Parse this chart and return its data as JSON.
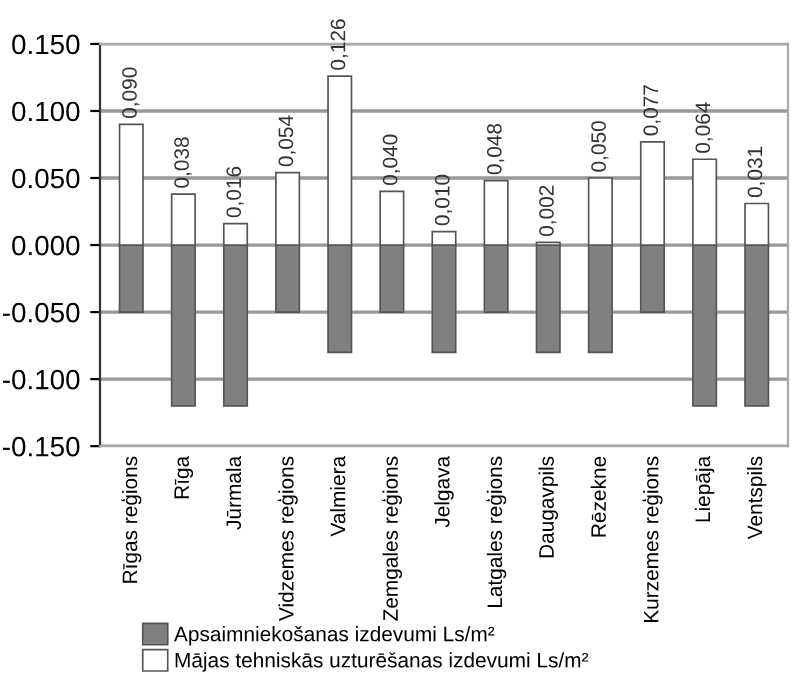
{
  "chart_data": {
    "type": "bar",
    "stacked": true,
    "categories": [
      "Rīgas reģions",
      "Rīga",
      "Jūrmala",
      "Vidzemes reģions",
      "Valmiera",
      "Zemgales reģions",
      "Jelgava",
      "Latgales reģions",
      "Daugavpils",
      "Rēzekne",
      "Kurzemes reģions",
      "Liepāja",
      "Ventspils"
    ],
    "series": [
      {
        "name": "Apsaimniekošanas izdevumi Ls/m²",
        "color": "#808080",
        "values": [
          -0.05,
          -0.12,
          -0.12,
          -0.05,
          -0.08,
          -0.05,
          -0.08,
          -0.05,
          -0.08,
          -0.08,
          -0.05,
          -0.12,
          -0.12
        ]
      },
      {
        "name": "Mājas tehniskās uzturēšanas izdevumi Ls/m²",
        "color": "#ffffff",
        "values": [
          0.09,
          0.038,
          0.016,
          0.054,
          0.126,
          0.04,
          0.01,
          0.048,
          0.002,
          0.05,
          0.077,
          0.064,
          0.031
        ],
        "value_labels": [
          "0,090",
          "0,038",
          "0,016",
          "0,054",
          "0,126",
          "0,040",
          "0,010",
          "0,048",
          "0,002",
          "0,050",
          "0,077",
          "0,064",
          "0,031"
        ]
      }
    ],
    "ylim": [
      -0.15,
      0.15
    ],
    "yticks": [
      {
        "value": -0.15,
        "label": "-0.150"
      },
      {
        "value": -0.1,
        "label": "-0.100"
      },
      {
        "value": -0.05,
        "label": "-0.050"
      },
      {
        "value": 0,
        "label": "0.000"
      },
      {
        "value": 0.05,
        "label": "0.050"
      },
      {
        "value": 0.1,
        "label": "0.100"
      },
      {
        "value": 0.15,
        "label": "0.150"
      }
    ],
    "grid": "y",
    "legend": "bottom"
  }
}
